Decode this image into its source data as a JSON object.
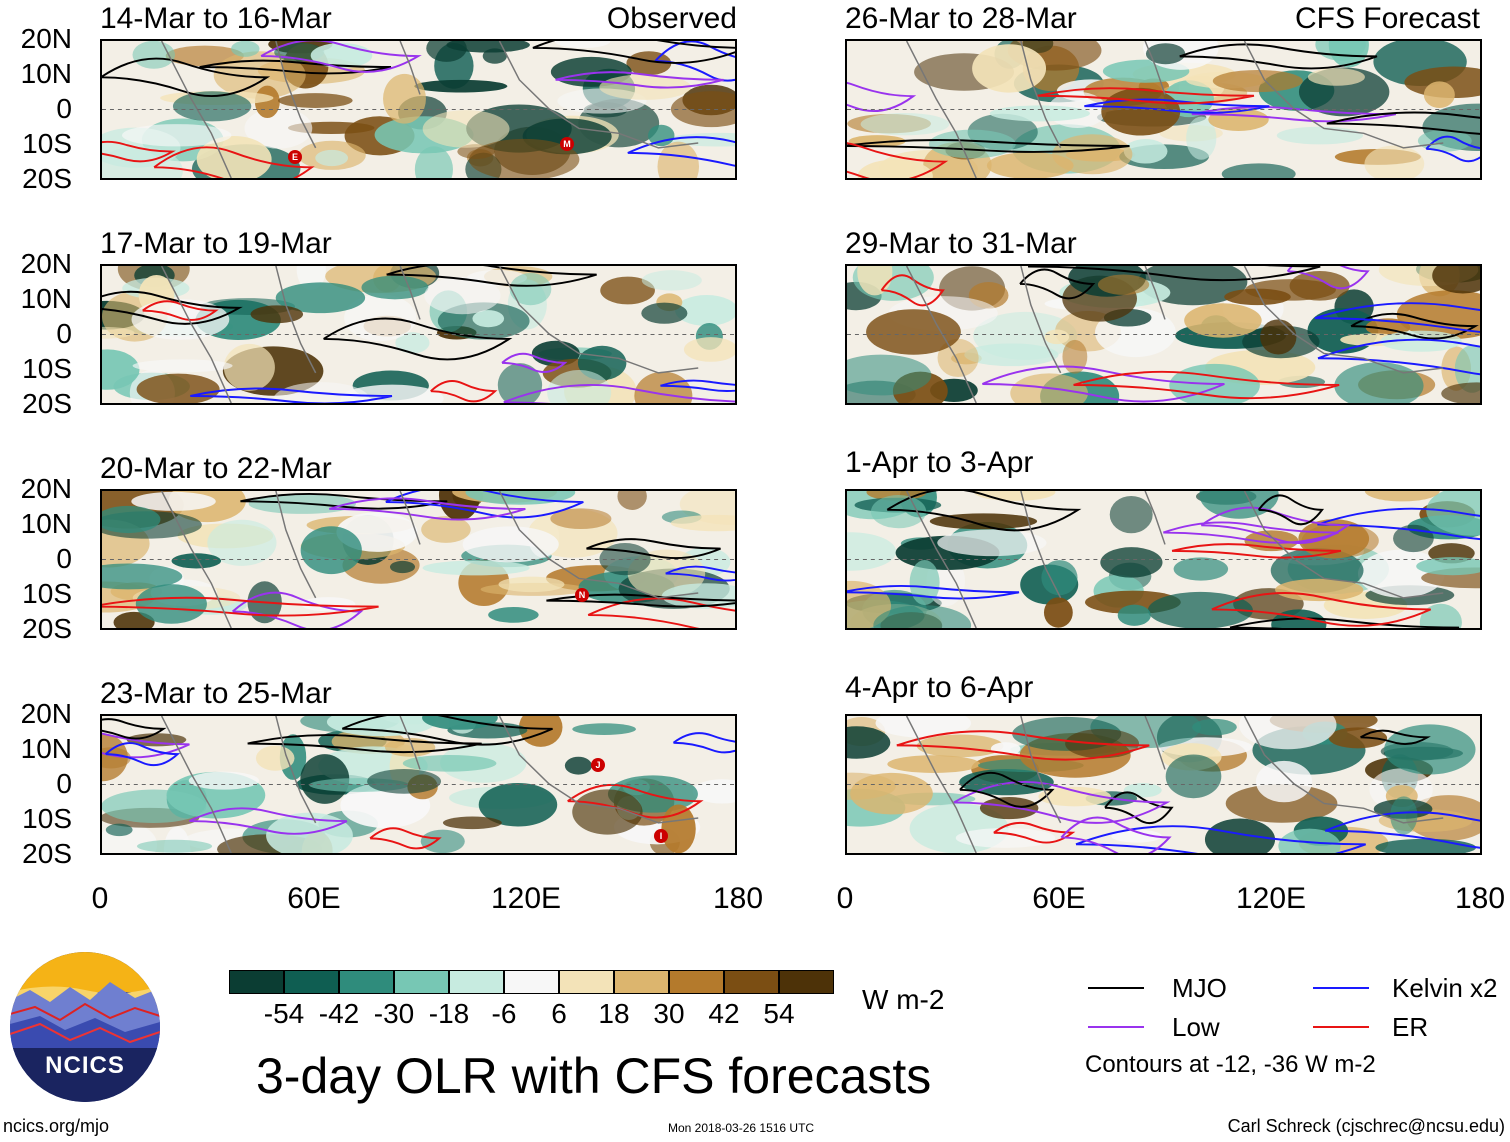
{
  "left_header": "Observed",
  "right_header": "CFS Forecast",
  "panels_left": [
    {
      "title": "14-Mar to 16-Mar"
    },
    {
      "title": "17-Mar to 19-Mar"
    },
    {
      "title": "20-Mar to 22-Mar"
    },
    {
      "title": "23-Mar to 25-Mar"
    }
  ],
  "panels_right": [
    {
      "title": "26-Mar to 28-Mar"
    },
    {
      "title": "29-Mar to 31-Mar"
    },
    {
      "title": "1-Apr to 3-Apr"
    },
    {
      "title": "4-Apr to 6-Apr"
    }
  ],
  "lat_labels": [
    "20N",
    "10N",
    "0",
    "10S",
    "20S"
  ],
  "lon_labels": [
    "0",
    "60E",
    "120E",
    "180"
  ],
  "storm_markers": [
    {
      "panel": 0,
      "label": "E"
    },
    {
      "panel": 0,
      "label": "M"
    },
    {
      "panel": 2,
      "label": "N"
    },
    {
      "panel": 3,
      "label": "J"
    },
    {
      "panel": 3,
      "label": "I"
    }
  ],
  "colorbar": {
    "labels": [
      "-54",
      "-42",
      "-30",
      "-18",
      "-6",
      "6",
      "18",
      "30",
      "42",
      "54"
    ],
    "colors": [
      "#0b3d33",
      "#0f5e52",
      "#2f8c7c",
      "#77c7b4",
      "#c7ebe0",
      "#f7f7f7",
      "#f3e3b8",
      "#dcb56e",
      "#b47a2c",
      "#7b4e13",
      "#4d3208"
    ],
    "unit": "W m-2"
  },
  "legend": {
    "items": [
      {
        "label": "MJO",
        "color": "#000000"
      },
      {
        "label": "Kelvin x2",
        "color": "#1a1aff"
      },
      {
        "label": "Low",
        "color": "#9933ee"
      },
      {
        "label": "ER",
        "color": "#e81414"
      }
    ],
    "note": "Contours at -12, -36 W m-2"
  },
  "title": "3-day OLR with CFS forecasts",
  "logo_text": "NCICS",
  "footer": {
    "url": "ncics.org/mjo",
    "timestamp": "Mon 2018-03-26 1516 UTC",
    "credit": "Carl Schreck (cjschrec@ncsu.edu)"
  }
}
